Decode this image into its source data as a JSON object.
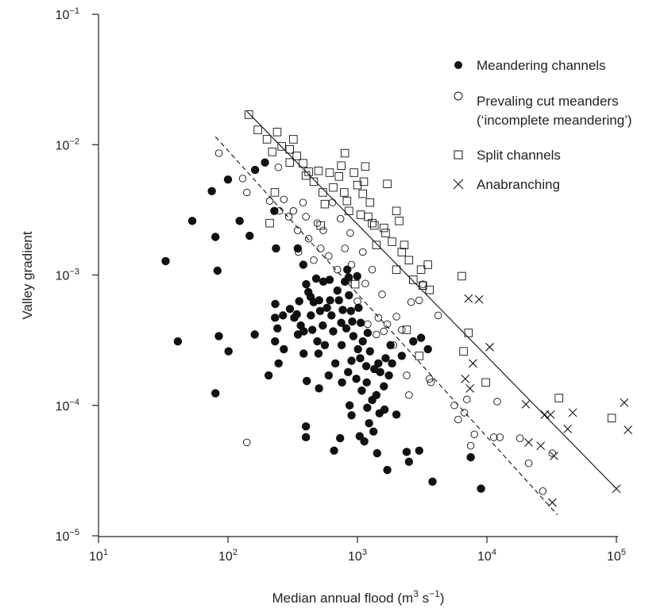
{
  "chart_data": {
    "type": "scatter",
    "xscale": "log",
    "yscale": "log",
    "xlim": [
      10,
      100000
    ],
    "ylim": [
      1e-05,
      0.1
    ],
    "xlabel": {
      "pre": "Median annual flood (m",
      "sup1": "3",
      "mid": " s",
      "sup2": "−1",
      "post": ")"
    },
    "ylabel": "Valley gradient",
    "x_ticks": [
      {
        "value": 10,
        "base": "10",
        "exp": "1"
      },
      {
        "value": 100,
        "base": "10",
        "exp": "2"
      },
      {
        "value": 1000,
        "base": "10",
        "exp": "3"
      },
      {
        "value": 10000,
        "base": "10",
        "exp": "4"
      },
      {
        "value": 100000,
        "base": "10",
        "exp": "5"
      }
    ],
    "y_ticks": [
      {
        "value": 1e-05,
        "base": "10",
        "exp": "−5"
      },
      {
        "value": 0.0001,
        "base": "10",
        "exp": "−4"
      },
      {
        "value": 0.001,
        "base": "10",
        "exp": "−3"
      },
      {
        "value": 0.01,
        "base": "10",
        "exp": "−2"
      },
      {
        "value": 0.1,
        "base": "10",
        "exp": "−1"
      }
    ],
    "legend": [
      {
        "label": "Meandering channels",
        "marker": "filled-circle"
      },
      {
        "label": "Prevaling cut meanders",
        "label2": "(‘incomplete meandering’)",
        "marker": "open-circle"
      },
      {
        "label": "Split channels",
        "marker": "open-square"
      },
      {
        "label": "Anabranching",
        "marker": "cross"
      }
    ],
    "legend_position": "top-right",
    "lines": [
      {
        "style": "solid",
        "points": [
          [
            140,
            0.018
          ],
          [
            100000,
            2.3e-05
          ]
        ]
      },
      {
        "style": "dashed",
        "points": [
          [
            80,
            0.0115
          ],
          [
            35000,
            1.45e-05
          ]
        ]
      }
    ],
    "series": [
      {
        "name": "Meandering channels",
        "marker": "filled-circle",
        "points": [
          [
            33,
            0.00128
          ],
          [
            41,
            0.00031
          ],
          [
            53,
            0.0026
          ],
          [
            75,
            0.0044
          ],
          [
            80,
            0.00196
          ],
          [
            80,
            0.000124
          ],
          [
            83,
            0.00108
          ],
          [
            85,
            0.00034
          ],
          [
            100,
            0.0054
          ],
          [
            101,
            0.00026
          ],
          [
            123,
            0.0026
          ],
          [
            147,
            0.002
          ],
          [
            162,
            0.0064
          ],
          [
            161,
            0.00035
          ],
          [
            193,
            0.0073
          ],
          [
            206,
            0.00017
          ],
          [
            228,
            0.0031
          ],
          [
            235,
            0.0016
          ],
          [
            232,
            0.0006
          ],
          [
            231,
            0.00047
          ],
          [
            231,
            0.00031
          ],
          [
            241,
            0.00039
          ],
          [
            246,
            0.00021
          ],
          [
            266,
            0.00049
          ],
          [
            270,
            0.00027
          ],
          [
            301,
            0.00055
          ],
          [
            325,
            0.00047
          ],
          [
            346,
            0.0016
          ],
          [
            347,
            0.00035
          ],
          [
            340,
            0.0005
          ],
          [
            355,
            0.00063
          ],
          [
            365,
            0.00041
          ],
          [
            382,
            0.0012
          ],
          [
            384,
            0.00025
          ],
          [
            385,
            0.00037
          ],
          [
            400,
            6.9e-05
          ],
          [
            406,
            0.000154
          ],
          [
            400,
            5.7e-05
          ],
          [
            402,
            0.00085
          ],
          [
            418,
            0.00074
          ],
          [
            435,
            0.00068
          ],
          [
            437,
            0.00049
          ],
          [
            448,
            0.00038
          ],
          [
            459,
            0.00062
          ],
          [
            480,
            0.00094
          ],
          [
            490,
            0.00031
          ],
          [
            500,
            0.00025
          ],
          [
            505,
            0.000135
          ],
          [
            506,
            0.00064
          ],
          [
            515,
            0.00053
          ],
          [
            540,
            0.00041
          ],
          [
            545,
            0.00089
          ],
          [
            560,
            0.00029
          ],
          [
            582,
            0.00056
          ],
          [
            600,
            0.00017
          ],
          [
            610,
            0.00092
          ],
          [
            615,
            0.00064
          ],
          [
            630,
            0.00049
          ],
          [
            650,
            0.00037
          ],
          [
            660,
            4.5e-05
          ],
          [
            675,
            0.00021
          ],
          [
            700,
            0.00076
          ],
          [
            720,
            0.00064
          ],
          [
            735,
            5.6e-05
          ],
          [
            750,
            0.00043
          ],
          [
            755,
            0.00029
          ],
          [
            760,
            0.00015
          ],
          [
            770,
            0.00054
          ],
          [
            800,
            0.00089
          ],
          [
            820,
            0.00039
          ],
          [
            835,
            0.0011
          ],
          [
            847,
            0.00018
          ],
          [
            855,
            0.00096
          ],
          [
            860,
            0.0007
          ],
          [
            870,
            0.0001
          ],
          [
            890,
            0.00053
          ],
          [
            900,
            8.4e-05
          ],
          [
            900,
            0.00022
          ],
          [
            912,
            0.00044
          ],
          [
            930,
            0.00034
          ],
          [
            980,
            0.00016
          ],
          [
            995,
            0.00098
          ],
          [
            1010,
            0.00027
          ],
          [
            1020,
            0.00056
          ],
          [
            1040,
            5.8e-05
          ],
          [
            1050,
            0.00023
          ],
          [
            1060,
            0.00043
          ],
          [
            1080,
            0.00013
          ],
          [
            1100,
            0.00031
          ],
          [
            1130,
            5.3e-05
          ],
          [
            1170,
            0.0002
          ],
          [
            1180,
            0.00015
          ],
          [
            1190,
            9.6e-05
          ],
          [
            1200,
            0.00036
          ],
          [
            1230,
            7.3e-05
          ],
          [
            1250,
            0.00026
          ],
          [
            1300,
            0.00011
          ],
          [
            1330,
            6.3e-05
          ],
          [
            1350,
            0.00019
          ],
          [
            1400,
            0.00012
          ],
          [
            1420,
            4.3e-05
          ],
          [
            1450,
            0.00021
          ],
          [
            1480,
            8.7e-05
          ],
          [
            1500,
            0.00018
          ],
          [
            1600,
            0.00014
          ],
          [
            1620,
            9.3e-05
          ],
          [
            1650,
            0.00023
          ],
          [
            1700,
            3.2e-05
          ],
          [
            1750,
            0.00017
          ],
          [
            1800,
            0.00029
          ],
          [
            1850,
            0.00021
          ],
          [
            2000,
            8.5e-05
          ],
          [
            2200,
            0.00024
          ],
          [
            2400,
            4.4e-05
          ],
          [
            2500,
            3.7e-05
          ],
          [
            2700,
            0.00031
          ],
          [
            3000,
            4.5e-05
          ],
          [
            3100,
            0.00033
          ],
          [
            3500,
            0.00027
          ],
          [
            3800,
            2.6e-05
          ],
          [
            7500,
            4e-05
          ],
          [
            9000,
            2.3e-05
          ]
        ]
      },
      {
        "name": "Prevaling cut meanders",
        "marker": "open-circle",
        "points": [
          [
            85,
            0.0086
          ],
          [
            130,
            0.0055
          ],
          [
            140,
            0.0043
          ],
          [
            210,
            0.0037
          ],
          [
            245,
            0.0067
          ],
          [
            250,
            0.0031
          ],
          [
            270,
            0.0038
          ],
          [
            295,
            0.0028
          ],
          [
            320,
            0.0031
          ],
          [
            345,
            0.0022
          ],
          [
            350,
            0.0015
          ],
          [
            380,
            0.0036
          ],
          [
            400,
            0.0028
          ],
          [
            420,
            0.0019
          ],
          [
            460,
            0.0013
          ],
          [
            490,
            0.0025
          ],
          [
            520,
            0.0016
          ],
          [
            545,
            0.0022
          ],
          [
            600,
            0.0014
          ],
          [
            640,
            0.0036
          ],
          [
            700,
            0.0011
          ],
          [
            740,
            0.0027
          ],
          [
            800,
            0.0016
          ],
          [
            850,
            0.00092
          ],
          [
            880,
            0.0021
          ],
          [
            900,
            0.0012
          ],
          [
            1000,
            0.00063
          ],
          [
            1100,
            0.0015
          ],
          [
            1150,
            0.00086
          ],
          [
            1200,
            0.00042
          ],
          [
            1300,
            0.0011
          ],
          [
            1400,
            0.00035
          ],
          [
            1450,
            0.00047
          ],
          [
            1550,
            0.00071
          ],
          [
            1600,
            0.00037
          ],
          [
            1700,
            0.00042
          ],
          [
            1900,
            0.00029
          ],
          [
            2000,
            0.00048
          ],
          [
            2200,
            0.00038
          ],
          [
            2400,
            0.00017
          ],
          [
            2500,
            0.00012
          ],
          [
            2600,
            0.00062
          ],
          [
            3000,
            0.00064
          ],
          [
            3200,
            0.00085
          ],
          [
            3600,
            0.00016
          ],
          [
            3700,
            0.00015
          ],
          [
            4200,
            0.00049
          ],
          [
            5600,
            0.0001
          ],
          [
            6000,
            7.8e-05
          ],
          [
            6700,
            8.8e-05
          ],
          [
            7000,
            0.000111
          ],
          [
            7500,
            4.9e-05
          ],
          [
            8000,
            6e-05
          ],
          [
            11300,
            5.7e-05
          ],
          [
            12000,
            0.000107
          ],
          [
            12600,
            5.7e-05
          ],
          [
            18000,
            5.6e-05
          ],
          [
            21000,
            3.6e-05
          ],
          [
            27000,
            2.2e-05
          ],
          [
            32000,
            4.3e-05
          ],
          [
            140,
            5.2e-05
          ]
        ]
      },
      {
        "name": "Split channels",
        "marker": "open-square",
        "points": [
          [
            145,
            0.017
          ],
          [
            170,
            0.013
          ],
          [
            200,
            0.011
          ],
          [
            220,
            0.0088
          ],
          [
            240,
            0.0125
          ],
          [
            260,
            0.0097
          ],
          [
            300,
            0.0092
          ],
          [
            320,
            0.011
          ],
          [
            300,
            0.0073
          ],
          [
            340,
            0.0082
          ],
          [
            380,
            0.0072
          ],
          [
            400,
            0.0058
          ],
          [
            420,
            0.0062
          ],
          [
            460,
            0.0052
          ],
          [
            500,
            0.0063
          ],
          [
            540,
            0.0043
          ],
          [
            560,
            0.0035
          ],
          [
            610,
            0.0061
          ],
          [
            650,
            0.0047
          ],
          [
            720,
            0.0057
          ],
          [
            750,
            0.0069
          ],
          [
            800,
            0.0086
          ],
          [
            790,
            0.0043
          ],
          [
            830,
            0.0037
          ],
          [
            860,
            0.0031
          ],
          [
            940,
            0.0061
          ],
          [
            1000,
            0.0049
          ],
          [
            1060,
            0.0029
          ],
          [
            1100,
            0.0042
          ],
          [
            1120,
            0.0052
          ],
          [
            1150,
            0.0068
          ],
          [
            1210,
            0.0028
          ],
          [
            1250,
            0.0036
          ],
          [
            1300,
            0.0025
          ],
          [
            1400,
            0.0017
          ],
          [
            1600,
            0.0023
          ],
          [
            1700,
            0.005
          ],
          [
            1650,
            0.0021
          ],
          [
            1850,
            0.0018
          ],
          [
            2000,
            0.0031
          ],
          [
            2100,
            0.0026
          ],
          [
            2200,
            0.0015
          ],
          [
            2300,
            0.0017
          ],
          [
            2500,
            0.0013
          ],
          [
            2700,
            0.00092
          ],
          [
            3100,
            0.0011
          ],
          [
            3200,
            0.00083
          ],
          [
            3500,
            0.0012
          ],
          [
            3600,
            0.00077
          ],
          [
            6400,
            0.00098
          ],
          [
            6600,
            0.00026
          ],
          [
            7200,
            0.00036
          ],
          [
            9800,
            0.00015
          ],
          [
            36000,
            0.000114
          ],
          [
            92000,
            8e-05
          ],
          [
            210,
            0.0025
          ],
          [
            230,
            0.0043
          ],
          [
            520,
            0.0024
          ],
          [
            960,
            0.00085
          ],
          [
            1350,
            0.0024
          ],
          [
            2000,
            0.0011
          ],
          [
            3000,
            0.00024
          ],
          [
            2400,
            0.00038
          ]
        ]
      },
      {
        "name": "Anabranching",
        "marker": "cross",
        "points": [
          [
            7200,
            0.00066
          ],
          [
            8700,
            0.00065
          ],
          [
            10500,
            0.00028
          ],
          [
            6800,
            0.00016
          ],
          [
            7400,
            0.000135
          ],
          [
            7800,
            0.00021
          ],
          [
            20000,
            0.000102
          ],
          [
            21000,
            5.2e-05
          ],
          [
            26000,
            4.9e-05
          ],
          [
            28000,
            8.5e-05
          ],
          [
            31000,
            8.5e-05
          ],
          [
            33000,
            4.1e-05
          ],
          [
            42000,
            6.6e-05
          ],
          [
            46000,
            8.8e-05
          ],
          [
            32000,
            1.8e-05
          ],
          [
            100000,
            2.3e-05
          ],
          [
            115000,
            0.000105
          ],
          [
            123000,
            6.5e-05
          ]
        ]
      }
    ]
  }
}
